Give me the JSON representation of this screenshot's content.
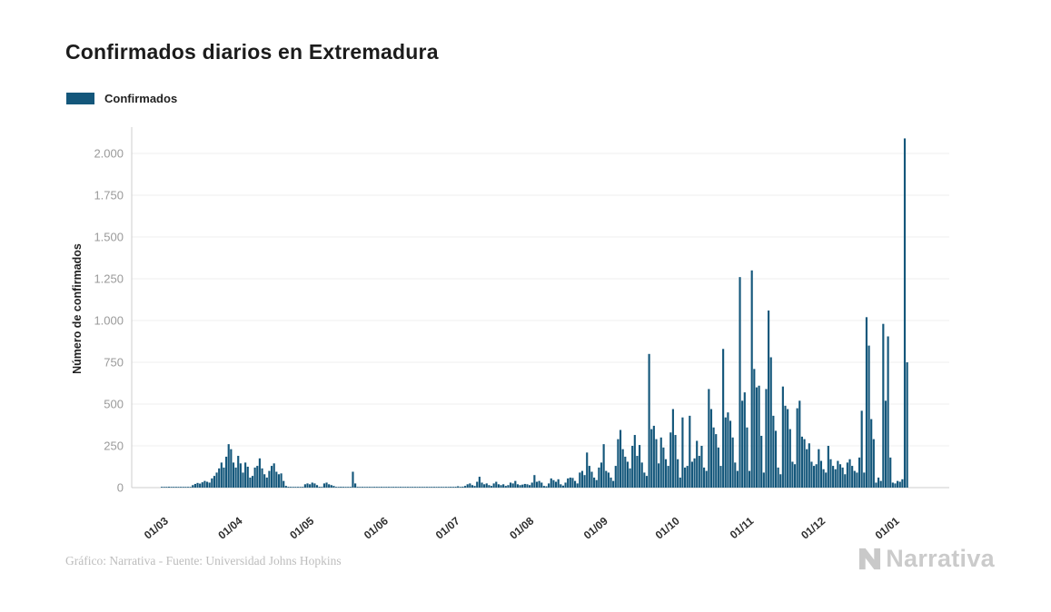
{
  "header": {
    "title": "Confirmados diarios en Extremadura"
  },
  "legend": {
    "label": "Confirmados",
    "swatch_color": "#14577B"
  },
  "footer": {
    "credit": "Gráfico: Narrativa - Fuente: Universidad Johns Hopkins",
    "brand": "Narrativa"
  },
  "colors": {
    "bar": "#14577B",
    "grid": "#efefef",
    "axis": "#cccccc",
    "y_tick_text": "#9a9a9a",
    "x_tick_text": "#2d2d2d",
    "axis_title_text": "#1f1f1f",
    "title_text": "#1c1c1c",
    "footer_text": "#bdbdbd",
    "brand_text": "#cbcbcb"
  },
  "chart_data": {
    "type": "bar",
    "title": "Confirmados diarios en Extremadura",
    "xlabel": "",
    "ylabel": "Número de confirmados",
    "legend_entries": [
      "Confirmados"
    ],
    "legend_position": "top-left",
    "grid": "horizontal",
    "ylim": [
      0,
      2200
    ],
    "y_ticks": [
      0,
      250,
      500,
      750,
      1000,
      1250,
      1500,
      1750,
      2000
    ],
    "y_tick_labels": [
      "0",
      "250",
      "500",
      "750",
      "1.000",
      "1.250",
      "1.500",
      "1.750",
      "2.000"
    ],
    "x_start_date": "2020-03-01",
    "x_tick_labels": [
      "01/03",
      "01/04",
      "01/05",
      "01/06",
      "01/07",
      "01/08",
      "01/09",
      "01/10",
      "01/11",
      "01/12",
      "01/01"
    ],
    "x_tick_day_indices": [
      0,
      31,
      61,
      92,
      122,
      153,
      184,
      214,
      245,
      275,
      306
    ],
    "series": [
      {
        "name": "Confirmados",
        "values": [
          0,
          0,
          3,
          5,
          4,
          3,
          0,
          0,
          0,
          0,
          0,
          0,
          2,
          15,
          22,
          28,
          24,
          32,
          40,
          35,
          30,
          55,
          70,
          90,
          115,
          150,
          120,
          185,
          260,
          230,
          150,
          120,
          190,
          145,
          90,
          150,
          125,
          60,
          70,
          120,
          130,
          175,
          115,
          80,
          60,
          100,
          130,
          145,
          95,
          80,
          85,
          40,
          10,
          5,
          3,
          2,
          2,
          1,
          1,
          2,
          20,
          25,
          20,
          30,
          25,
          15,
          5,
          3,
          25,
          30,
          20,
          15,
          10,
          3,
          2,
          5,
          3,
          2,
          2,
          2,
          95,
          25,
          3,
          2,
          2,
          1,
          1,
          2,
          2,
          1,
          1,
          0,
          0,
          1,
          0,
          2,
          1,
          0,
          0,
          1,
          2,
          1,
          0,
          0,
          1,
          0,
          2,
          1,
          0,
          0,
          2,
          1,
          2,
          1,
          0,
          1,
          2,
          3,
          2,
          4,
          3,
          5,
          3,
          5,
          8,
          4,
          6,
          10,
          20,
          25,
          15,
          10,
          35,
          65,
          30,
          20,
          25,
          15,
          10,
          25,
          35,
          20,
          15,
          20,
          10,
          15,
          30,
          25,
          40,
          20,
          15,
          18,
          22,
          20,
          15,
          30,
          75,
          35,
          40,
          30,
          10,
          8,
          25,
          55,
          45,
          35,
          50,
          20,
          12,
          30,
          55,
          60,
          58,
          40,
          25,
          90,
          100,
          75,
          210,
          130,
          95,
          60,
          45,
          120,
          150,
          260,
          100,
          90,
          60,
          40,
          130,
          290,
          345,
          230,
          185,
          155,
          115,
          250,
          315,
          190,
          255,
          150,
          90,
          70,
          800,
          350,
          370,
          290,
          145,
          300,
          240,
          170,
          130,
          330,
          470,
          315,
          170,
          60,
          420,
          120,
          130,
          430,
          155,
          175,
          280,
          190,
          250,
          120,
          100,
          590,
          470,
          360,
          320,
          240,
          130,
          830,
          420,
          450,
          400,
          300,
          150,
          100,
          1260,
          520,
          570,
          360,
          100,
          1300,
          710,
          600,
          610,
          310,
          90,
          590,
          1060,
          780,
          430,
          340,
          120,
          80,
          605,
          490,
          470,
          350,
          155,
          140,
          475,
          520,
          305,
          290,
          230,
          265,
          155,
          130,
          140,
          230,
          160,
          110,
          90,
          250,
          170,
          130,
          110,
          160,
          140,
          120,
          80,
          150,
          170,
          130,
          100,
          90,
          180,
          460,
          90,
          1020,
          850,
          410,
          290,
          30,
          60,
          40,
          980,
          520,
          905,
          180,
          30,
          25,
          40,
          35,
          50,
          2090,
          750
        ]
      }
    ]
  }
}
